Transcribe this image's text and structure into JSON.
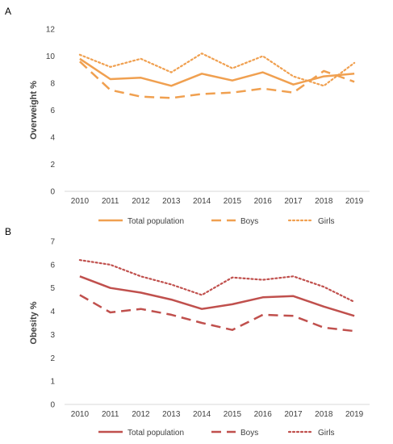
{
  "chart_data": [
    {
      "type": "line",
      "panel_label": "A",
      "ylabel": "Overweight %",
      "xlabel": "",
      "ylim": [
        0,
        12
      ],
      "y_ticks": [
        0,
        2,
        4,
        6,
        8,
        10,
        12
      ],
      "x": [
        "2010",
        "2011",
        "2012",
        "2013",
        "2014",
        "2015",
        "2016",
        "2017",
        "2018",
        "2019"
      ],
      "color": "#f0a050",
      "grid": false,
      "legend_position": "bottom",
      "series": [
        {
          "name": "Total population",
          "style": "solid",
          "values": [
            9.8,
            8.3,
            8.4,
            7.8,
            8.7,
            8.2,
            8.8,
            7.9,
            8.5,
            8.7
          ]
        },
        {
          "name": "Boys",
          "style": "dashed",
          "values": [
            9.6,
            7.5,
            7.0,
            6.9,
            7.2,
            7.3,
            7.6,
            7.3,
            8.9,
            8.1
          ]
        },
        {
          "name": "Girls",
          "style": "dotted",
          "values": [
            10.1,
            9.2,
            9.8,
            8.8,
            10.2,
            9.1,
            10.0,
            8.5,
            7.8,
            9.5
          ]
        }
      ]
    },
    {
      "type": "line",
      "panel_label": "B",
      "ylabel": "Obesity %",
      "xlabel": "",
      "ylim": [
        0,
        7
      ],
      "y_ticks": [
        0,
        1,
        2,
        3,
        4,
        5,
        6,
        7
      ],
      "x": [
        "2010",
        "2011",
        "2012",
        "2013",
        "2014",
        "2015",
        "2016",
        "2017",
        "2018",
        "2019"
      ],
      "color": "#c0504d",
      "grid": false,
      "legend_position": "bottom",
      "series": [
        {
          "name": "Total population",
          "style": "solid",
          "values": [
            5.5,
            5.0,
            4.8,
            4.5,
            4.1,
            4.3,
            4.6,
            4.65,
            4.2,
            3.8
          ]
        },
        {
          "name": "Boys",
          "style": "dashed",
          "values": [
            4.7,
            3.95,
            4.1,
            3.85,
            3.5,
            3.2,
            3.85,
            3.8,
            3.3,
            3.15
          ]
        },
        {
          "name": "Girls",
          "style": "dotted",
          "values": [
            6.2,
            6.0,
            5.5,
            5.15,
            4.7,
            5.45,
            5.35,
            5.5,
            5.05,
            4.4
          ]
        }
      ]
    }
  ]
}
